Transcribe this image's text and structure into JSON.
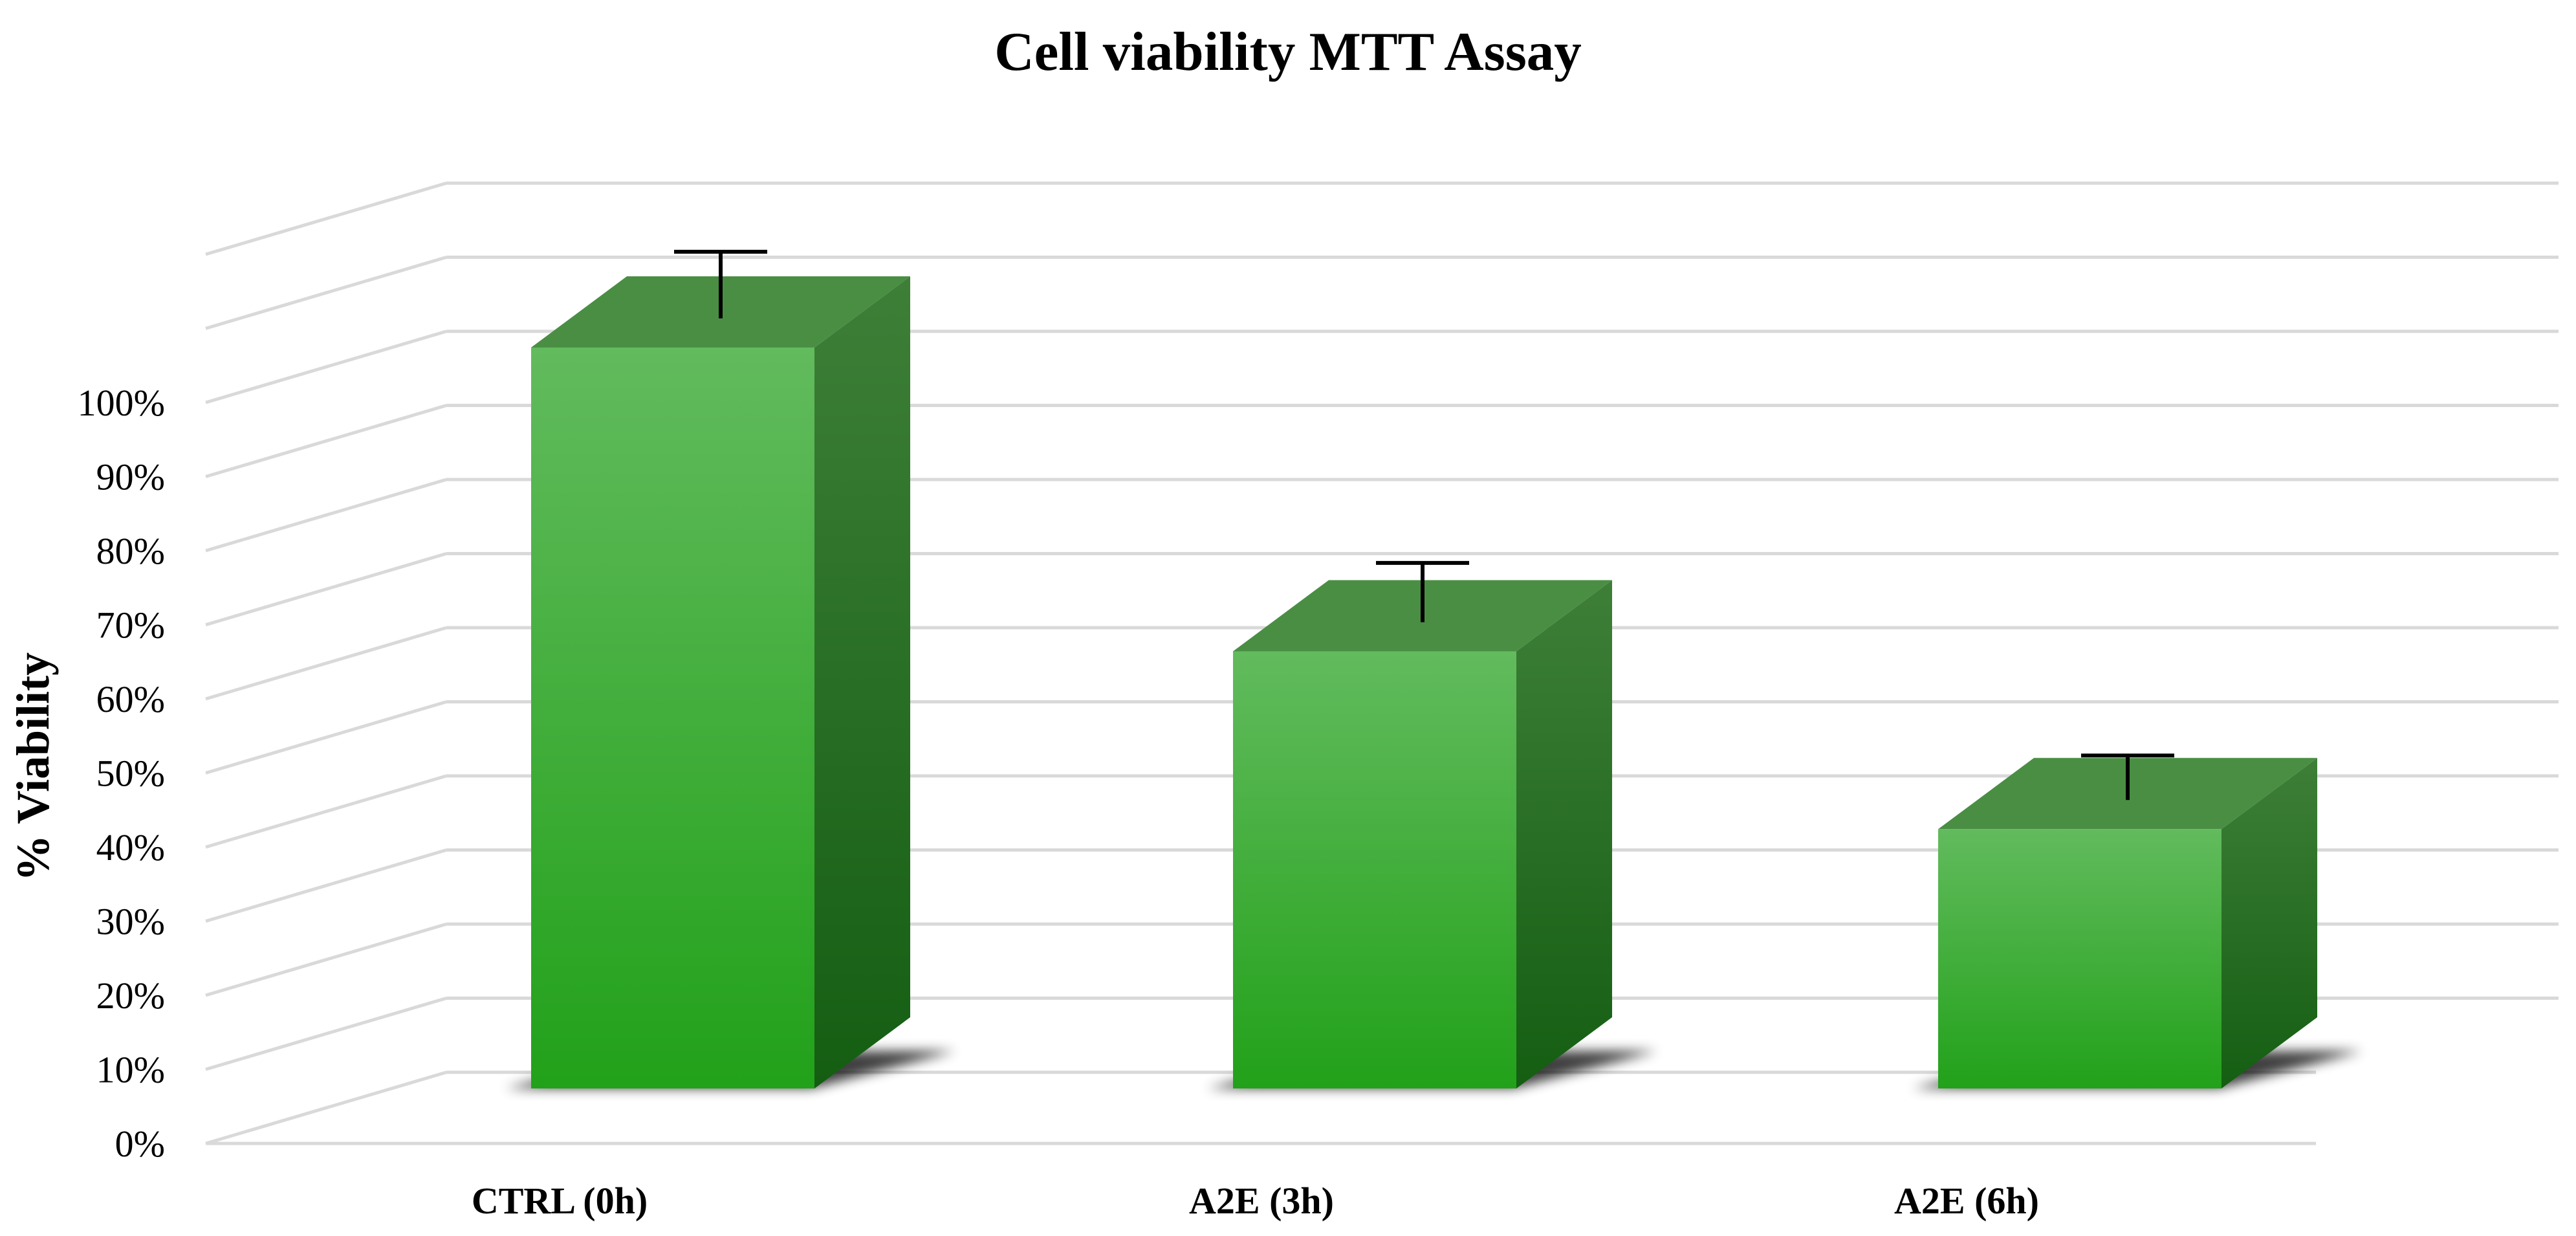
{
  "chart_data": {
    "type": "bar",
    "title": "Cell viability MTT Assay",
    "ylabel": "% Viability",
    "xlabel": "",
    "ylim": [
      0,
      100
    ],
    "yticks": [
      "0%",
      "10%",
      "20%",
      "30%",
      "40%",
      "50%",
      "60%",
      "70%",
      "80%",
      "90%",
      "100%"
    ],
    "categories": [
      "CTRL (0h)",
      "A2E (3h)",
      "A2E (6h)"
    ],
    "values": [
      100,
      59,
      35
    ],
    "error": [
      9,
      8,
      6
    ],
    "grid": true,
    "three_d": true,
    "colors": {
      "front_top": "#62bb5d",
      "front_bottom": "#22a11a",
      "side_top": "#3e7f38",
      "side_bottom": "#145e12",
      "top": "#4a8e44",
      "grid": "#d9d9d9",
      "error_bar": "#000000"
    }
  }
}
